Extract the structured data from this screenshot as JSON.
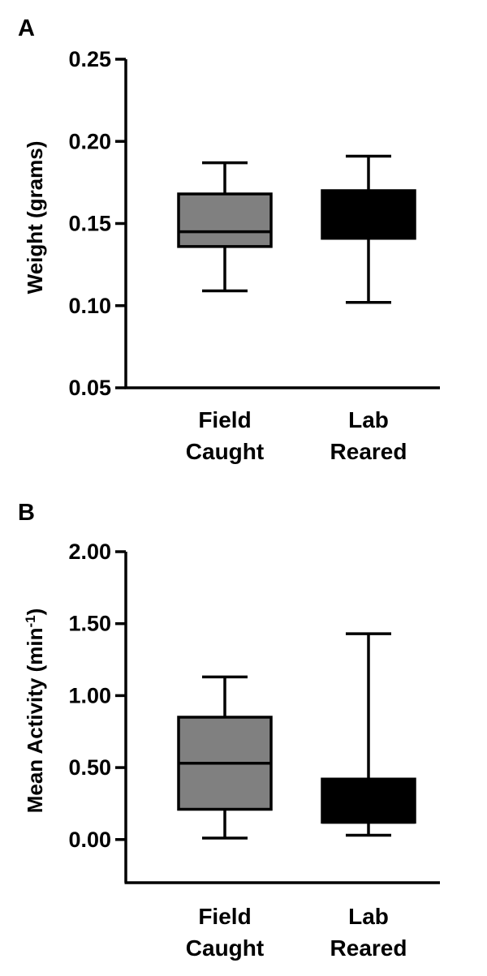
{
  "chart_data": [
    {
      "type": "box",
      "panel_label": "A",
      "ylabel": "Weight (grams)",
      "ylim": [
        0.05,
        0.25
      ],
      "yticks": [
        "0.05",
        "0.10",
        "0.15",
        "0.20",
        "0.25"
      ],
      "ytick_values": [
        0.05,
        0.1,
        0.15,
        0.2,
        0.25
      ],
      "categories": [
        [
          "Field",
          "Caught"
        ],
        [
          "Lab",
          "Reared"
        ]
      ],
      "boxes": [
        {
          "whisker_low": 0.109,
          "q1": 0.136,
          "median": 0.145,
          "q3": 0.168,
          "whisker_high": 0.187,
          "color": "#808080"
        },
        {
          "whisker_low": 0.102,
          "q1": 0.141,
          "median": 0.141,
          "q3": 0.17,
          "whisker_high": 0.191,
          "color": "#000000"
        }
      ]
    },
    {
      "type": "box",
      "panel_label": "B",
      "ylabel": "Mean Activity (min",
      "ylabel_sup": "-1",
      "ylabel_end": ")",
      "ylim": [
        -0.3,
        2.0
      ],
      "yticks": [
        "0.00",
        "0.50",
        "1.00",
        "1.50",
        "2.00"
      ],
      "ytick_values": [
        0.0,
        0.5,
        1.0,
        1.5,
        2.0
      ],
      "categories": [
        [
          "Field",
          "Caught"
        ],
        [
          "Lab",
          "Reared"
        ]
      ],
      "boxes": [
        {
          "whisker_low": 0.01,
          "q1": 0.21,
          "median": 0.53,
          "q3": 0.85,
          "whisker_high": 1.13,
          "color": "#808080"
        },
        {
          "whisker_low": 0.03,
          "q1": 0.12,
          "median": 0.12,
          "q3": 0.42,
          "whisker_high": 1.43,
          "color": "#000000"
        }
      ]
    }
  ]
}
